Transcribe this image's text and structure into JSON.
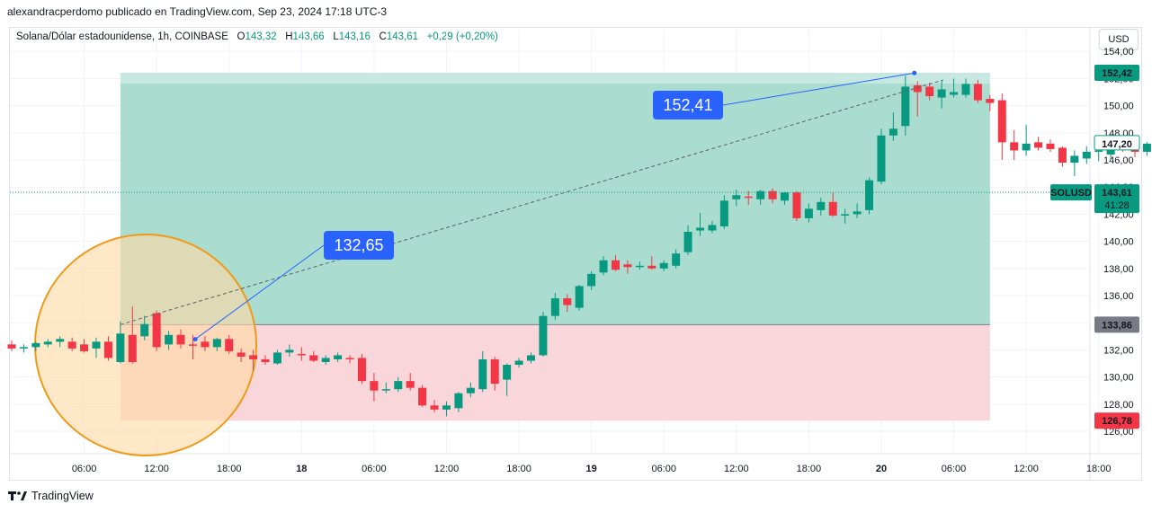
{
  "header": {
    "author_line": "alexandracperdomo publicado en TradingView.com, Sep 23, 2024 17:18 UTC-3"
  },
  "legend": {
    "symbol": "Solana/Dólar estadounidense, 1h, COINBASE",
    "o_label": "O",
    "o": "143,32",
    "h_label": "H",
    "h": "143,66",
    "l_label": "L",
    "l": "143,16",
    "c_label": "C",
    "c": "143,61",
    "change": "+0,29 (+0,20%)"
  },
  "currency_button": "USD",
  "footer": {
    "logo_text": "TradingView"
  },
  "colors": {
    "up": "#089981",
    "down": "#f23645",
    "profit_zone": "#a5dacd",
    "loss_zone": "#f9d6d9",
    "circle_fill": "#ffd9a3",
    "circle_stroke": "#f09a1a",
    "callout": "#2962ff",
    "current_price": "#089981"
  },
  "chart_data": {
    "type": "candlestick",
    "interval": "1h",
    "y_axis": {
      "range": [
        125.2,
        155.0
      ],
      "ticks": [
        "126,00",
        "128,00",
        "130,00",
        "132,00",
        "134,00",
        "136,00",
        "138,00",
        "140,00",
        "142,00",
        "144,00",
        "146,00",
        "148,00",
        "150,00",
        "152,00",
        "154,00"
      ],
      "tick_values": [
        126,
        128,
        130,
        132,
        134,
        136,
        138,
        140,
        142,
        144,
        146,
        148,
        150,
        152,
        154
      ]
    },
    "x_axis": {
      "labels": [
        "06:00",
        "12:00",
        "18:00",
        "18",
        "06:00",
        "12:00",
        "18:00",
        "19",
        "06:00",
        "12:00",
        "18:00",
        "20",
        "06:00",
        "12:00",
        "18:00"
      ],
      "label_hours": [
        6,
        12,
        18,
        24,
        30,
        36,
        42,
        48,
        54,
        60,
        66,
        72,
        78,
        84,
        90
      ],
      "bold_labels": [
        "18",
        "19",
        "20"
      ]
    },
    "candles": [
      [
        0,
        132.4,
        132.7,
        131.9,
        132.1
      ],
      [
        1,
        132.1,
        132.4,
        131.8,
        132.2
      ],
      [
        2,
        132.2,
        132.6,
        131.9,
        132.5
      ],
      [
        3,
        132.4,
        132.8,
        132.2,
        132.6
      ],
      [
        4,
        132.6,
        133.0,
        132.2,
        132.8
      ],
      [
        5,
        132.6,
        132.9,
        131.9,
        132.1
      ],
      [
        6,
        132.4,
        132.8,
        131.8,
        131.9
      ],
      [
        7,
        132.1,
        132.9,
        131.4,
        132.6
      ],
      [
        8,
        132.6,
        133.0,
        131.2,
        131.4
      ],
      [
        9,
        131.1,
        134.1,
        131.0,
        133.2
      ],
      [
        10,
        133.1,
        135.2,
        131.0,
        131.1
      ],
      [
        11,
        133.0,
        134.5,
        132.7,
        133.9
      ],
      [
        12,
        134.7,
        134.9,
        131.9,
        132.2
      ],
      [
        13,
        132.4,
        133.4,
        132.0,
        133.1
      ],
      [
        14,
        133.1,
        133.5,
        132.1,
        132.4
      ],
      [
        15,
        132.4,
        133.1,
        131.3,
        132.3
      ],
      [
        16,
        132.6,
        133.0,
        131.9,
        132.2
      ],
      [
        17,
        132.2,
        132.9,
        131.9,
        132.8
      ],
      [
        18,
        132.8,
        133.1,
        131.7,
        131.9
      ],
      [
        19,
        131.8,
        132.1,
        131.1,
        131.5
      ],
      [
        20,
        131.6,
        132.0,
        130.5,
        131.3
      ],
      [
        21,
        131.3,
        131.6,
        130.9,
        131.1
      ],
      [
        22,
        131.0,
        132.0,
        130.9,
        131.8
      ],
      [
        23,
        131.8,
        132.4,
        131.5,
        132.0
      ],
      [
        24,
        131.7,
        132.2,
        131.2,
        131.6
      ],
      [
        25,
        131.6,
        131.9,
        131.1,
        131.2
      ],
      [
        26,
        131.1,
        131.6,
        130.9,
        131.4
      ],
      [
        27,
        131.3,
        131.8,
        131.1,
        131.6
      ],
      [
        28,
        131.4,
        131.6,
        131.0,
        131.3
      ],
      [
        29,
        131.4,
        131.7,
        129.5,
        129.7
      ],
      [
        30,
        129.7,
        130.3,
        128.2,
        129.0
      ],
      [
        31,
        129.0,
        129.6,
        128.8,
        129.1
      ],
      [
        32,
        129.1,
        130.0,
        128.9,
        129.7
      ],
      [
        33,
        129.7,
        130.3,
        129.0,
        129.2
      ],
      [
        34,
        129.2,
        129.4,
        127.8,
        127.9
      ],
      [
        35,
        127.9,
        128.3,
        127.4,
        127.6
      ],
      [
        36,
        127.6,
        128.2,
        127.1,
        127.9
      ],
      [
        37,
        127.7,
        128.9,
        127.4,
        128.8
      ],
      [
        38,
        128.8,
        129.6,
        128.5,
        129.2
      ],
      [
        39,
        129.1,
        131.9,
        128.9,
        131.3
      ],
      [
        40,
        131.3,
        131.5,
        129.0,
        129.5
      ],
      [
        41,
        129.8,
        131.0,
        128.6,
        130.9
      ],
      [
        42,
        130.9,
        131.4,
        130.7,
        131.2
      ],
      [
        43,
        131.2,
        131.8,
        131.0,
        131.6
      ],
      [
        44,
        131.6,
        134.8,
        131.5,
        134.5
      ],
      [
        45,
        134.5,
        136.2,
        134.2,
        135.8
      ],
      [
        46,
        135.8,
        136.1,
        134.8,
        135.3
      ],
      [
        47,
        135.1,
        136.8,
        134.9,
        136.7
      ],
      [
        48,
        136.7,
        137.8,
        136.4,
        137.6
      ],
      [
        49,
        137.7,
        138.9,
        137.5,
        138.6
      ],
      [
        50,
        138.6,
        139.0,
        137.8,
        137.9
      ],
      [
        51,
        138.3,
        138.6,
        137.6,
        138.1
      ],
      [
        52,
        138.1,
        138.5,
        137.9,
        138.2
      ],
      [
        53,
        138.2,
        138.9,
        137.9,
        138.0
      ],
      [
        54,
        138.0,
        138.6,
        137.8,
        138.4
      ],
      [
        55,
        138.2,
        139.4,
        138.0,
        139.1
      ],
      [
        56,
        139.2,
        141.2,
        139.0,
        140.7
      ],
      [
        57,
        140.8,
        142.1,
        140.4,
        141.0
      ],
      [
        58,
        140.8,
        141.5,
        140.6,
        141.2
      ],
      [
        59,
        141.1,
        143.4,
        140.9,
        143.0
      ],
      [
        60,
        143.1,
        143.8,
        142.6,
        143.4
      ],
      [
        61,
        143.3,
        143.7,
        142.7,
        143.2
      ],
      [
        62,
        143.1,
        143.8,
        142.7,
        143.7
      ],
      [
        63,
        143.7,
        143.9,
        142.8,
        143.1
      ],
      [
        64,
        143.0,
        143.6,
        142.7,
        143.6
      ],
      [
        65,
        143.6,
        143.7,
        141.5,
        141.7
      ],
      [
        66,
        141.7,
        142.8,
        141.4,
        142.4
      ],
      [
        67,
        142.3,
        143.2,
        141.9,
        142.9
      ],
      [
        68,
        142.9,
        143.6,
        141.8,
        141.9
      ],
      [
        69,
        141.9,
        142.4,
        141.3,
        142.0
      ],
      [
        70,
        142.0,
        142.8,
        141.7,
        142.2
      ],
      [
        71,
        142.3,
        144.7,
        142.0,
        144.5
      ],
      [
        72,
        144.4,
        148.3,
        144.2,
        147.8
      ],
      [
        73,
        147.8,
        149.5,
        147.4,
        148.3
      ],
      [
        74,
        148.5,
        152.2,
        147.8,
        151.4
      ],
      [
        75,
        151.5,
        151.8,
        149.2,
        151.0
      ],
      [
        76,
        151.4,
        151.7,
        150.4,
        150.7
      ],
      [
        77,
        150.6,
        151.9,
        149.8,
        151.2
      ],
      [
        78,
        150.8,
        152.0,
        150.6,
        151.0
      ],
      [
        79,
        150.8,
        152.0,
        150.6,
        151.6
      ],
      [
        80,
        151.6,
        151.9,
        150.2,
        150.4
      ],
      [
        81,
        150.5,
        150.8,
        149.6,
        150.2
      ],
      [
        82,
        150.4,
        150.9,
        146.0,
        147.3
      ],
      [
        83,
        147.3,
        148.2,
        146.0,
        146.7
      ],
      [
        84,
        146.7,
        148.6,
        146.3,
        147.2
      ],
      [
        85,
        147.3,
        147.7,
        146.7,
        146.9
      ],
      [
        86,
        147.2,
        147.5,
        146.6,
        146.8
      ],
      [
        87,
        146.9,
        147.0,
        145.5,
        145.8
      ],
      [
        88,
        145.8,
        146.7,
        144.8,
        146.3
      ],
      [
        89,
        146.1,
        147.0,
        145.7,
        146.6
      ],
      [
        90,
        146.6,
        147.1,
        145.9,
        146.7
      ],
      [
        91,
        146.4,
        147.7,
        146.0,
        147.1
      ],
      [
        92,
        147.3,
        147.6,
        146.6,
        147.0
      ],
      [
        93,
        147.0,
        147.3,
        146.2,
        146.6
      ],
      [
        94,
        146.6,
        147.3,
        146.3,
        147.2
      ]
    ],
    "position_tool": {
      "entry": 133.86,
      "target": 152.42,
      "stop": 126.78,
      "target_label": "152,42",
      "entry_label": "133,86",
      "stop_label": "126,78",
      "start_hour": 9,
      "end_hour": 81
    },
    "callouts": [
      {
        "text": "132,65",
        "price": 132.65,
        "hour": 12
      },
      {
        "text": "152,41",
        "price": 152.41,
        "hour": 74
      }
    ],
    "current_price": {
      "symbol": "SOLUSD",
      "value": 143.61,
      "label": "143,61",
      "countdown": "41:28"
    },
    "crosshair_price": {
      "value": 147.2,
      "label": "147,20"
    }
  }
}
